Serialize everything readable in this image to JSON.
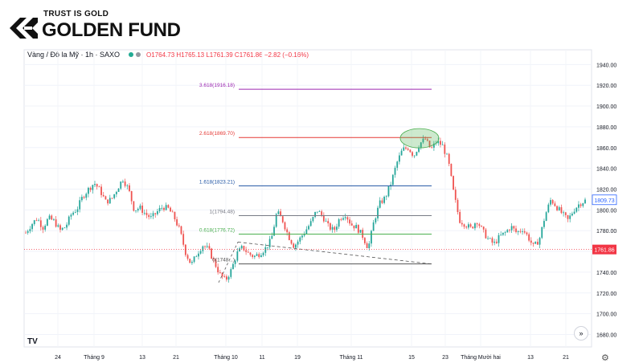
{
  "brand": {
    "tagline": "TRUST IS GOLD",
    "name": "GOLDEN FUND"
  },
  "legend": {
    "symbol": "Vàng / Đô la Mỹ · 1h · SAXO",
    "ohlc": "O1764.73 H1765.13 L1761.39 C1761.86 −2.82 (−0.16%)"
  },
  "colors": {
    "up": "#26a69a",
    "down": "#ef5350",
    "fib_3618": "#9c27b0",
    "fib_2618": "#e53935",
    "fib_1618": "#1e53a3",
    "fib_1": "#787b86",
    "fib_0618": "#4caf50",
    "fib_0": "#555555",
    "price_line": "#f23645"
  },
  "nav_icon": "double-chevron-right-icon",
  "settings_icon": "gear-icon",
  "chart_data": {
    "type": "candlestick",
    "symbol": "Vàng / Đô la Mỹ",
    "interval": "1h",
    "source": "SAXO",
    "y_axis": {
      "ticks": [
        "1940.00",
        "1920.00",
        "1900.00",
        "1880.00",
        "1860.00",
        "1840.00",
        "1820.00",
        "1800.00",
        "1780.00",
        "1760.00",
        "1740.00",
        "1720.00",
        "1700.00",
        "1680.00"
      ],
      "ylim": [
        1668,
        1948
      ],
      "position": "right"
    },
    "x_axis": {
      "ticks": [
        "24",
        "Tháng 9",
        "13",
        "21",
        "Tháng 10",
        "11",
        "19",
        "Tháng 11",
        "15",
        "23",
        "Tháng Mười hai",
        "13",
        "21"
      ]
    },
    "last_price": {
      "value": 1761.86,
      "label": "1761.86"
    },
    "current_marker": {
      "value": 1809.73,
      "label": "1809.73"
    },
    "fib_extension": [
      {
        "level": 3.618,
        "price": 1916.18,
        "label": "3.618(1916.18)"
      },
      {
        "level": 2.618,
        "price": 1869.7,
        "label": "2.618(1869.70)"
      },
      {
        "level": 1.618,
        "price": 1823.21,
        "label": "1.618(1823.21)"
      },
      {
        "level": 1,
        "price": 1794.48,
        "label": "1(1794.48)"
      },
      {
        "level": 0.618,
        "price": 1776.72,
        "label": "0.618(1776.72)"
      },
      {
        "level": 0,
        "price": 1748,
        "label": "0(1748...)"
      }
    ],
    "close_path": [
      {
        "x": 0,
        "y": 1778
      },
      {
        "x": 1,
        "y": 1786
      },
      {
        "x": 2,
        "y": 1792
      },
      {
        "x": 3,
        "y": 1783
      },
      {
        "x": 4,
        "y": 1792
      },
      {
        "x": 5,
        "y": 1789
      },
      {
        "x": 6,
        "y": 1780
      },
      {
        "x": 7,
        "y": 1784
      },
      {
        "x": 8,
        "y": 1796
      },
      {
        "x": 9,
        "y": 1801
      },
      {
        "x": 10,
        "y": 1813
      },
      {
        "x": 11,
        "y": 1820
      },
      {
        "x": 12,
        "y": 1826
      },
      {
        "x": 13,
        "y": 1819
      },
      {
        "x": 14,
        "y": 1808
      },
      {
        "x": 15,
        "y": 1810
      },
      {
        "x": 16,
        "y": 1820
      },
      {
        "x": 17,
        "y": 1830
      },
      {
        "x": 18,
        "y": 1820
      },
      {
        "x": 19,
        "y": 1800
      },
      {
        "x": 20,
        "y": 1802
      },
      {
        "x": 21,
        "y": 1796
      },
      {
        "x": 22,
        "y": 1792
      },
      {
        "x": 23,
        "y": 1798
      },
      {
        "x": 24,
        "y": 1803
      },
      {
        "x": 25,
        "y": 1801
      },
      {
        "x": 26,
        "y": 1793
      },
      {
        "x": 27,
        "y": 1780
      },
      {
        "x": 28,
        "y": 1759
      },
      {
        "x": 29,
        "y": 1747
      },
      {
        "x": 30,
        "y": 1758
      },
      {
        "x": 31,
        "y": 1766
      },
      {
        "x": 32,
        "y": 1762
      },
      {
        "x": 33,
        "y": 1750
      },
      {
        "x": 34,
        "y": 1738
      },
      {
        "x": 35,
        "y": 1732
      },
      {
        "x": 36,
        "y": 1742
      },
      {
        "x": 37,
        "y": 1758
      },
      {
        "x": 38,
        "y": 1764
      },
      {
        "x": 39,
        "y": 1758
      },
      {
        "x": 40,
        "y": 1755
      },
      {
        "x": 41,
        "y": 1758
      },
      {
        "x": 42,
        "y": 1763
      },
      {
        "x": 43,
        "y": 1771
      },
      {
        "x": 44,
        "y": 1798
      },
      {
        "x": 45,
        "y": 1790
      },
      {
        "x": 46,
        "y": 1775
      },
      {
        "x": 47,
        "y": 1765
      },
      {
        "x": 48,
        "y": 1772
      },
      {
        "x": 49,
        "y": 1780
      },
      {
        "x": 50,
        "y": 1788
      },
      {
        "x": 51,
        "y": 1800
      },
      {
        "x": 52,
        "y": 1794
      },
      {
        "x": 53,
        "y": 1784
      },
      {
        "x": 54,
        "y": 1780
      },
      {
        "x": 55,
        "y": 1792
      },
      {
        "x": 56,
        "y": 1796
      },
      {
        "x": 57,
        "y": 1786
      },
      {
        "x": 58,
        "y": 1783
      },
      {
        "x": 59,
        "y": 1775
      },
      {
        "x": 60,
        "y": 1763
      },
      {
        "x": 61,
        "y": 1789
      },
      {
        "x": 62,
        "y": 1806
      },
      {
        "x": 63,
        "y": 1812
      },
      {
        "x": 64,
        "y": 1826
      },
      {
        "x": 65,
        "y": 1845
      },
      {
        "x": 66,
        "y": 1858
      },
      {
        "x": 67,
        "y": 1860
      },
      {
        "x": 68,
        "y": 1852
      },
      {
        "x": 69,
        "y": 1864
      },
      {
        "x": 70,
        "y": 1868
      },
      {
        "x": 71,
        "y": 1858
      },
      {
        "x": 72,
        "y": 1866
      },
      {
        "x": 73,
        "y": 1862
      },
      {
        "x": 74,
        "y": 1848
      },
      {
        "x": 75,
        "y": 1815
      },
      {
        "x": 76,
        "y": 1790
      },
      {
        "x": 77,
        "y": 1786
      },
      {
        "x": 78,
        "y": 1782
      },
      {
        "x": 79,
        "y": 1790
      },
      {
        "x": 80,
        "y": 1780
      },
      {
        "x": 81,
        "y": 1772
      },
      {
        "x": 82,
        "y": 1767
      },
      {
        "x": 83,
        "y": 1774
      },
      {
        "x": 84,
        "y": 1778
      },
      {
        "x": 85,
        "y": 1784
      },
      {
        "x": 86,
        "y": 1778
      },
      {
        "x": 87,
        "y": 1782
      },
      {
        "x": 88,
        "y": 1774
      },
      {
        "x": 89,
        "y": 1764
      },
      {
        "x": 90,
        "y": 1772
      },
      {
        "x": 91,
        "y": 1795
      },
      {
        "x": 92,
        "y": 1810
      },
      {
        "x": 93,
        "y": 1803
      },
      {
        "x": 94,
        "y": 1796
      },
      {
        "x": 95,
        "y": 1790
      },
      {
        "x": 96,
        "y": 1800
      },
      {
        "x": 97,
        "y": 1806
      },
      {
        "x": 98,
        "y": 1809
      }
    ],
    "grid": true
  }
}
